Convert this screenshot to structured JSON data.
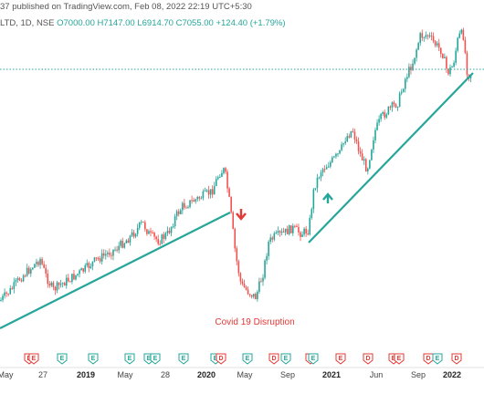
{
  "header": {
    "published_line": "37 published on TradingView.com, Feb 08, 2022 22:19 UTC+5:30",
    "symbol_line": "LTD, 1D, NSE",
    "open": "O7000.00",
    "high": "H7147.00",
    "low": "L6914.70",
    "close": "C7055.00",
    "change": "+124.40 (+1.79%)"
  },
  "annotation": {
    "text": "Covid 19 Disruption",
    "down_arrow_color": "#e53935",
    "up_arrow_color": "#26a69a"
  },
  "colors": {
    "up": "#26a69a",
    "down": "#ef5350",
    "trendline": "#26a69a",
    "price_line": "#26a69a",
    "annotation": "#e53935"
  },
  "x_axis": [
    {
      "label": "May",
      "bold": false
    },
    {
      "label": "27",
      "bold": false
    },
    {
      "label": "2019",
      "bold": true
    },
    {
      "label": "May",
      "bold": false
    },
    {
      "label": "28",
      "bold": false
    },
    {
      "label": "2020",
      "bold": true
    },
    {
      "label": "May",
      "bold": false
    },
    {
      "label": "Sep",
      "bold": false
    },
    {
      "label": "2021",
      "bold": true
    },
    {
      "label": "Jun",
      "bold": false
    },
    {
      "label": "Sep",
      "bold": false
    },
    {
      "label": "2022",
      "bold": true
    }
  ],
  "events": [
    {
      "type": "dividend",
      "icon": "dividend-icon"
    },
    {
      "type": "earnings",
      "icon": "earnings-icon"
    },
    {
      "type": "earnings-up",
      "icon": "earnings-icon"
    },
    {
      "type": "earnings-up",
      "icon": "earnings-icon"
    },
    {
      "type": "earnings-up",
      "icon": "earnings-icon"
    },
    {
      "type": "earnings-up",
      "icon": "earnings-icon"
    },
    {
      "type": "earnings-up",
      "icon": "earnings-icon"
    },
    {
      "type": "earnings-up",
      "icon": "earnings-icon"
    },
    {
      "type": "earnings-up",
      "icon": "earnings-icon"
    },
    {
      "type": "dividend-up",
      "icon": "dividend-icon"
    },
    {
      "type": "earnings-up",
      "icon": "earnings-icon"
    },
    {
      "type": "dividend",
      "icon": "dividend-icon"
    },
    {
      "type": "earnings-up",
      "icon": "earnings-icon"
    },
    {
      "type": "earnings",
      "icon": "earnings-icon"
    },
    {
      "type": "earnings-up",
      "icon": "earnings-icon"
    },
    {
      "type": "earnings",
      "icon": "earnings-icon"
    },
    {
      "type": "dividend",
      "icon": "dividend-icon"
    },
    {
      "type": "earnings",
      "icon": "earnings-icon"
    },
    {
      "type": "earnings",
      "icon": "earnings-icon"
    },
    {
      "type": "dividend-up",
      "icon": "dividend-icon"
    },
    {
      "type": "earnings-up",
      "icon": "earnings-icon"
    },
    {
      "type": "dividend",
      "icon": "dividend-icon"
    }
  ]
}
